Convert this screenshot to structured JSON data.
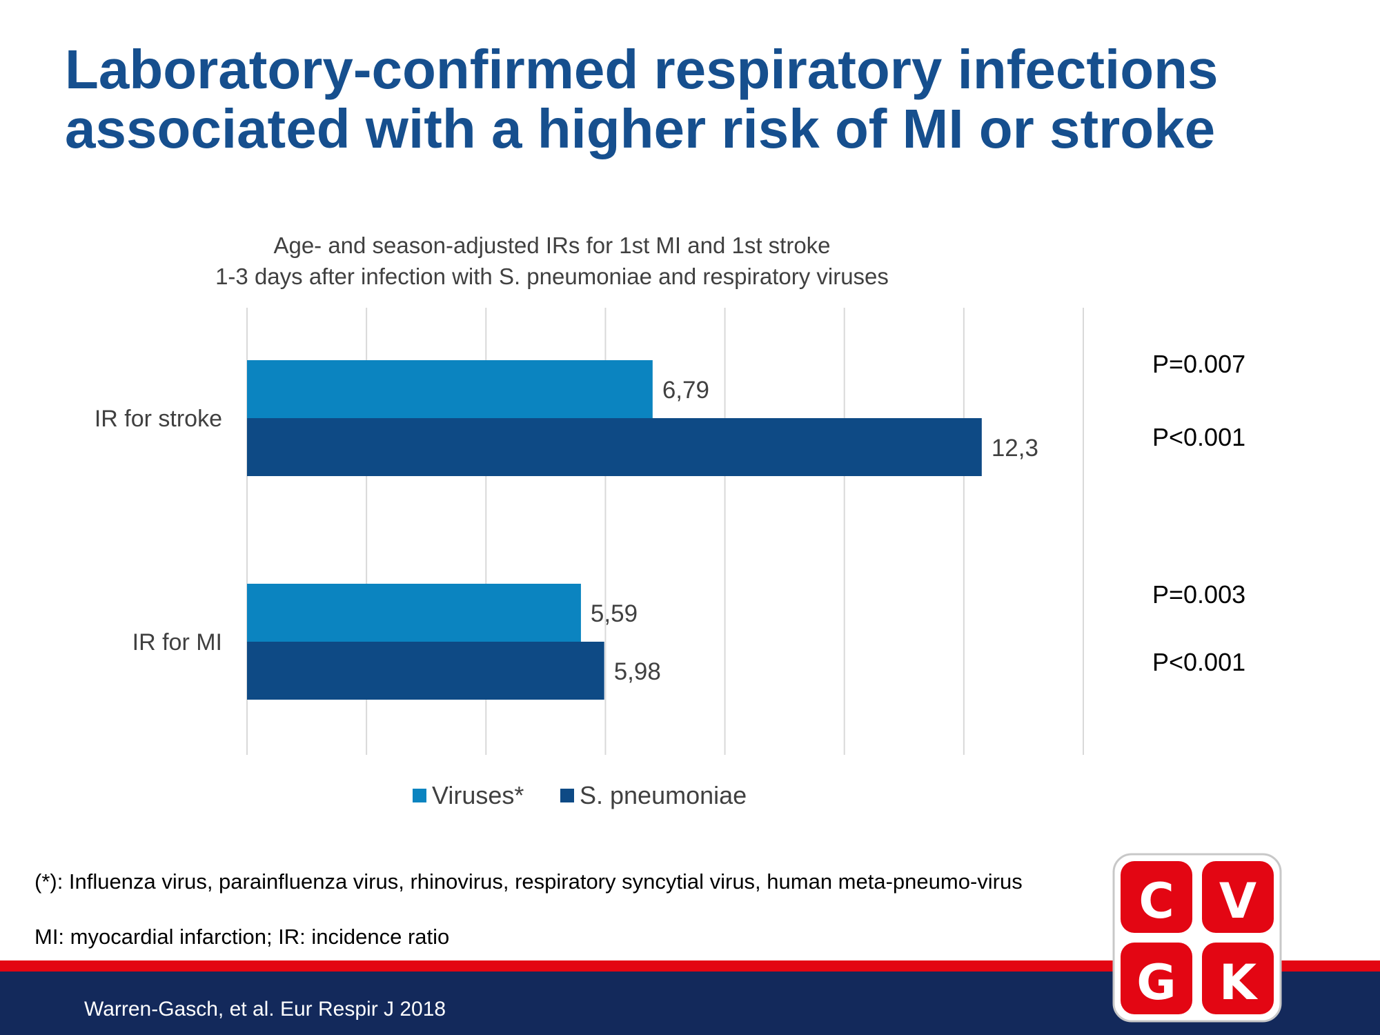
{
  "slide": {
    "title_lines": [
      "Laboratory-confirmed respiratory infections",
      "associated with a higher risk of MI or stroke"
    ],
    "footnotes": [
      "(*): Influenza virus, parainfluenza virus, rhinovirus, respiratory syncytial virus, human meta-pneumo-virus",
      "MI: myocardial infarction; IR: incidence ratio"
    ],
    "citation": "Warren-Gasch, et al. Eur Respir J 2018",
    "logo": {
      "letters": [
        "C",
        "V",
        "G",
        "K"
      ]
    }
  },
  "colors": {
    "title": "#164f8e",
    "viruses": "#0b84c0",
    "s_pneumoniae": "#0e4a85",
    "gridline": "#d9d9d9",
    "red_stripe": "#e30613",
    "blue_band": "#13295b",
    "logo_red": "#e30613"
  },
  "chart_data": {
    "type": "bar",
    "orientation": "horizontal",
    "title": "Age- and season-adjusted IRs for 1st MI and 1st stroke",
    "subtitle": "1-3 days after infection with S. pneumoniae and respiratory viruses",
    "categories": [
      "IR for stroke",
      "IR for MI"
    ],
    "series": [
      {
        "name": "Viruses*",
        "values": [
          6.79,
          5.59
        ],
        "labels": [
          "6,79",
          "5,59"
        ],
        "p_values": [
          "P=0.007",
          "P=0.003"
        ]
      },
      {
        "name": "S. pneumoniae",
        "values": [
          12.3,
          5.98
        ],
        "labels": [
          "12,3",
          "5,98"
        ],
        "p_values": [
          "P<0.001",
          "P<0.001"
        ]
      }
    ],
    "xlim": [
      0,
      14
    ],
    "x_gridlines": [
      0,
      2,
      4,
      6,
      8,
      10,
      12,
      14
    ],
    "x_tick_labels_shown": false,
    "grid": true,
    "legend": "bottom"
  }
}
